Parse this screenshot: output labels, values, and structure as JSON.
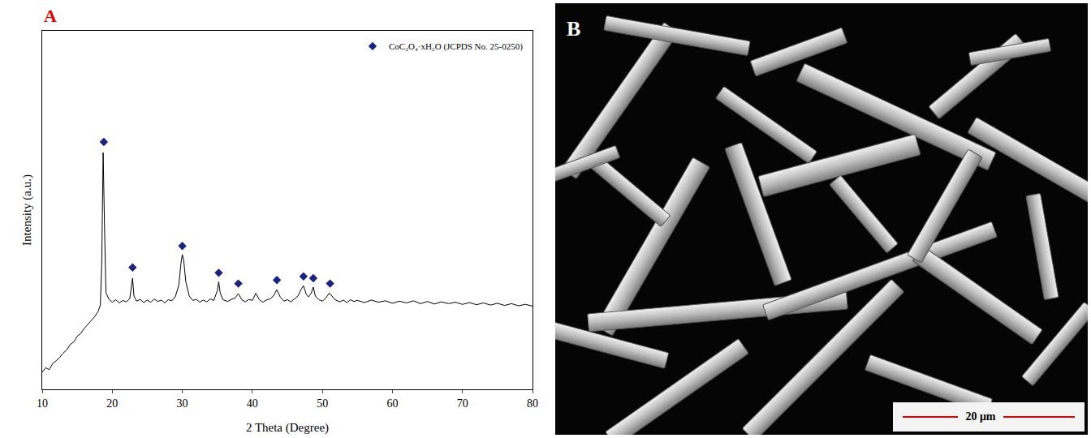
{
  "chart_data": {
    "type": "line",
    "panel": "A",
    "x_label": "2 Theta (Degree)",
    "y_label": "Intensity (a.u.)",
    "xlim": [
      10,
      80
    ],
    "xticks": [
      10,
      20,
      30,
      40,
      50,
      60,
      70,
      80
    ],
    "ylim": [
      0,
      100
    ],
    "yticks": [],
    "tick_labels": "x",
    "grid": false,
    "legend": "top right",
    "series": [
      {
        "type": "line",
        "color": "#000000",
        "x": [
          10,
          10.5,
          11,
          11.5,
          12,
          12.5,
          13,
          13.5,
          14,
          14.5,
          15,
          15.5,
          16,
          16.5,
          17,
          17.5,
          18,
          18.3,
          18.5,
          18.7,
          18.9,
          19.1,
          19.5,
          20,
          20.5,
          21,
          21.5,
          22,
          22.5,
          22.8,
          22.9,
          23.1,
          23.5,
          24,
          24.5,
          25,
          25.5,
          26,
          26.5,
          27,
          27.5,
          28,
          28.5,
          29,
          29.5,
          29.8,
          30,
          30.2,
          30.5,
          31,
          31.5,
          32,
          32.5,
          33,
          33.5,
          34,
          34.5,
          35,
          35.2,
          35.4,
          35.8,
          36.5,
          37,
          37.5,
          38,
          38.5,
          39,
          39.5,
          40,
          40.5,
          41,
          41.5,
          42,
          42.5,
          43,
          43.5,
          44,
          44.5,
          45,
          45.5,
          46,
          46.5,
          47,
          47.3,
          47.7,
          48,
          48.4,
          48.7,
          49,
          49.5,
          50,
          50.5,
          51,
          51.3,
          51.8,
          52.5,
          53,
          53.5,
          54,
          54.5,
          55,
          56,
          57,
          58,
          59,
          60,
          61,
          62,
          63,
          64,
          65,
          66,
          67,
          68,
          69,
          70,
          71,
          72,
          73,
          74,
          75,
          76,
          77,
          78,
          79,
          80
        ],
        "values": [
          4.8,
          6.0,
          5.5,
          7.2,
          8.0,
          8.9,
          10.1,
          11.0,
          12.5,
          13.2,
          14.8,
          15.6,
          17.0,
          18.1,
          19.2,
          20.3,
          21.8,
          23.5,
          35,
          66,
          45,
          27,
          25.2,
          24.3,
          25.0,
          24.1,
          24.8,
          24.4,
          25.3,
          30,
          31,
          26,
          24.6,
          25.1,
          24.2,
          24.9,
          24.3,
          25.2,
          24.5,
          24.9,
          24.1,
          25.0,
          24.7,
          25.8,
          29,
          35,
          37.6,
          36,
          30,
          26,
          24.8,
          25.1,
          24.3,
          24.9,
          24.4,
          25.2,
          24.8,
          27.5,
          30,
          27,
          25.0,
          24.5,
          25.1,
          25.4,
          26.7,
          25.0,
          24.4,
          25.1,
          24.8,
          26.8,
          25.0,
          24.3,
          24.9,
          25.2,
          26,
          27.8,
          25.7,
          24.6,
          25.0,
          24.4,
          25.3,
          26.0,
          28,
          28.9,
          26.5,
          25.8,
          26.8,
          28.5,
          26.0,
          25.0,
          24.6,
          25.5,
          26.9,
          26.2,
          25.0,
          24.4,
          24.9,
          24.2,
          25.0,
          24.5,
          24.8,
          24.2,
          24.9,
          24.3,
          24.7,
          24.0,
          24.6,
          24.1,
          24.7,
          23.9,
          24.5,
          23.8,
          24.4,
          23.9,
          24.3,
          23.7,
          24.2,
          23.6,
          24.1,
          23.5,
          24.0,
          23.4,
          23.9,
          23.3,
          23.7,
          23.2
        ]
      },
      {
        "type": "scatter",
        "name": "CoC₂O₄·xH₂O (JCPDS No. 25-0250)",
        "color": "#1a237e",
        "marker": "diamond",
        "x": [
          18.8,
          22.9,
          30,
          35.2,
          38,
          43.5,
          47.3,
          48.7,
          51.1
        ],
        "values": [
          69,
          34,
          40,
          32.5,
          29.5,
          30.5,
          31.5,
          31,
          29.5
        ]
      }
    ]
  },
  "image": {
    "panel": "B",
    "scale_bar": "20 μm"
  }
}
